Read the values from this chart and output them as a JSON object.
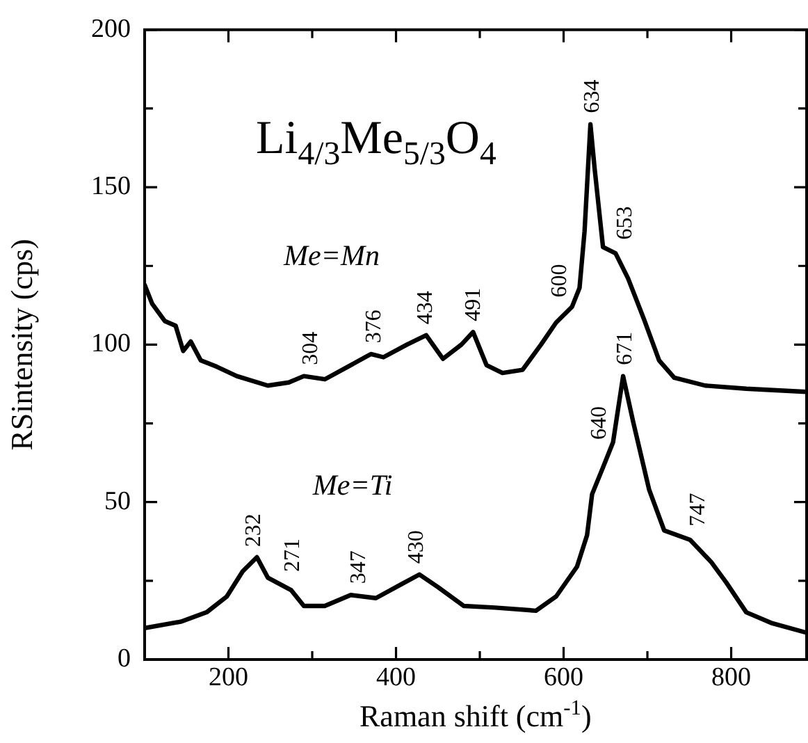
{
  "chart_data": {
    "type": "line",
    "xlabel": "Raman shift (cm$^{-1}$)",
    "ylabel": "RSintensity (cps)",
    "xlim": [
      100,
      890
    ],
    "ylim": [
      0,
      200
    ],
    "xticks": [
      200,
      {
        "value": 300,
        "label": null
      },
      400,
      {
        "value": 500,
        "label": null
      },
      600,
      {
        "value": 700,
        "label": null
      },
      800
    ],
    "yticks": [
      0,
      {
        "value": 25,
        "label": null
      },
      50,
      {
        "value": 75,
        "label": null
      },
      100,
      {
        "value": 125,
        "label": null
      },
      150,
      {
        "value": 175,
        "label": null
      },
      200
    ],
    "marker": "none",
    "line_style": "solid",
    "series": [
      {
        "name": "Me=Mn",
        "color": "#000000",
        "x": [
          100,
          109,
          124,
          137,
          146,
          155,
          167,
          186,
          210,
          247,
          272,
          290,
          315,
          346,
          370,
          385,
          413,
          436,
          456,
          478,
          492,
          508,
          527,
          551,
          573,
          591,
          610,
          619,
          625,
          632,
          637,
          647,
          662,
          677,
          696,
          714,
          732,
          769,
          818,
          890
        ],
        "values": [
          119,
          113,
          107.5,
          106,
          98,
          101,
          95,
          93,
          90,
          87,
          88,
          90,
          89,
          93.5,
          97,
          96,
          100,
          103,
          95.5,
          100,
          104,
          93.5,
          91,
          92,
          100,
          107,
          112,
          118,
          136,
          170,
          156,
          131,
          129,
          121,
          108,
          95,
          89.5,
          87,
          86,
          85
        ]
      },
      {
        "name": "Me=Ti",
        "color": "#000000",
        "x": [
          100,
          143,
          174,
          198,
          217,
          234,
          247,
          275,
          290,
          315,
          346,
          376,
          407,
          428,
          450,
          481,
          518,
          567,
          591,
          616,
          628,
          634,
          647,
          659,
          671,
          683,
          702,
          720,
          751,
          776,
          794,
          818,
          849,
          890
        ],
        "values": [
          10,
          12,
          15,
          20,
          28,
          32.5,
          26,
          22,
          17,
          17,
          20.5,
          19.5,
          24,
          27,
          23,
          17,
          16.5,
          15.5,
          20,
          29.5,
          39.5,
          52.5,
          61,
          69,
          90,
          75.5,
          54,
          41,
          38,
          31,
          24.5,
          15,
          11.5,
          8.5
        ]
      }
    ],
    "annotations": [
      "Li$_{4/3}$Me$_{5/3}$O$_{4}$",
      {
        "text": "304",
        "x": 296,
        "y": 89.8
      },
      {
        "text": "376",
        "x": 371,
        "y": 96.9
      },
      {
        "text": "434",
        "x": 433,
        "y": 102.6
      },
      {
        "text": "491",
        "x": 490,
        "y": 103.4
      },
      {
        "text": "600",
        "x": 593,
        "y": 107.5
      },
      {
        "text": "634",
        "x": 632,
        "y": 170
      },
      {
        "text": "653",
        "x": 671,
        "y": 124.2
      },
      {
        "text": "671",
        "x": 671,
        "y": 90
      },
      {
        "text": "640",
        "x": 640,
        "y": 56.4
      },
      {
        "text": "747",
        "x": 758,
        "y": 36
      },
      {
        "text": "232",
        "x": 228,
        "y": 30.9
      },
      {
        "text": "271",
        "x": 274,
        "y": 22.1
      },
      {
        "text": "347",
        "x": 353,
        "y": 20.3
      },
      {
        "text": "430",
        "x": 422,
        "y": 26.1
      }
    ]
  }
}
